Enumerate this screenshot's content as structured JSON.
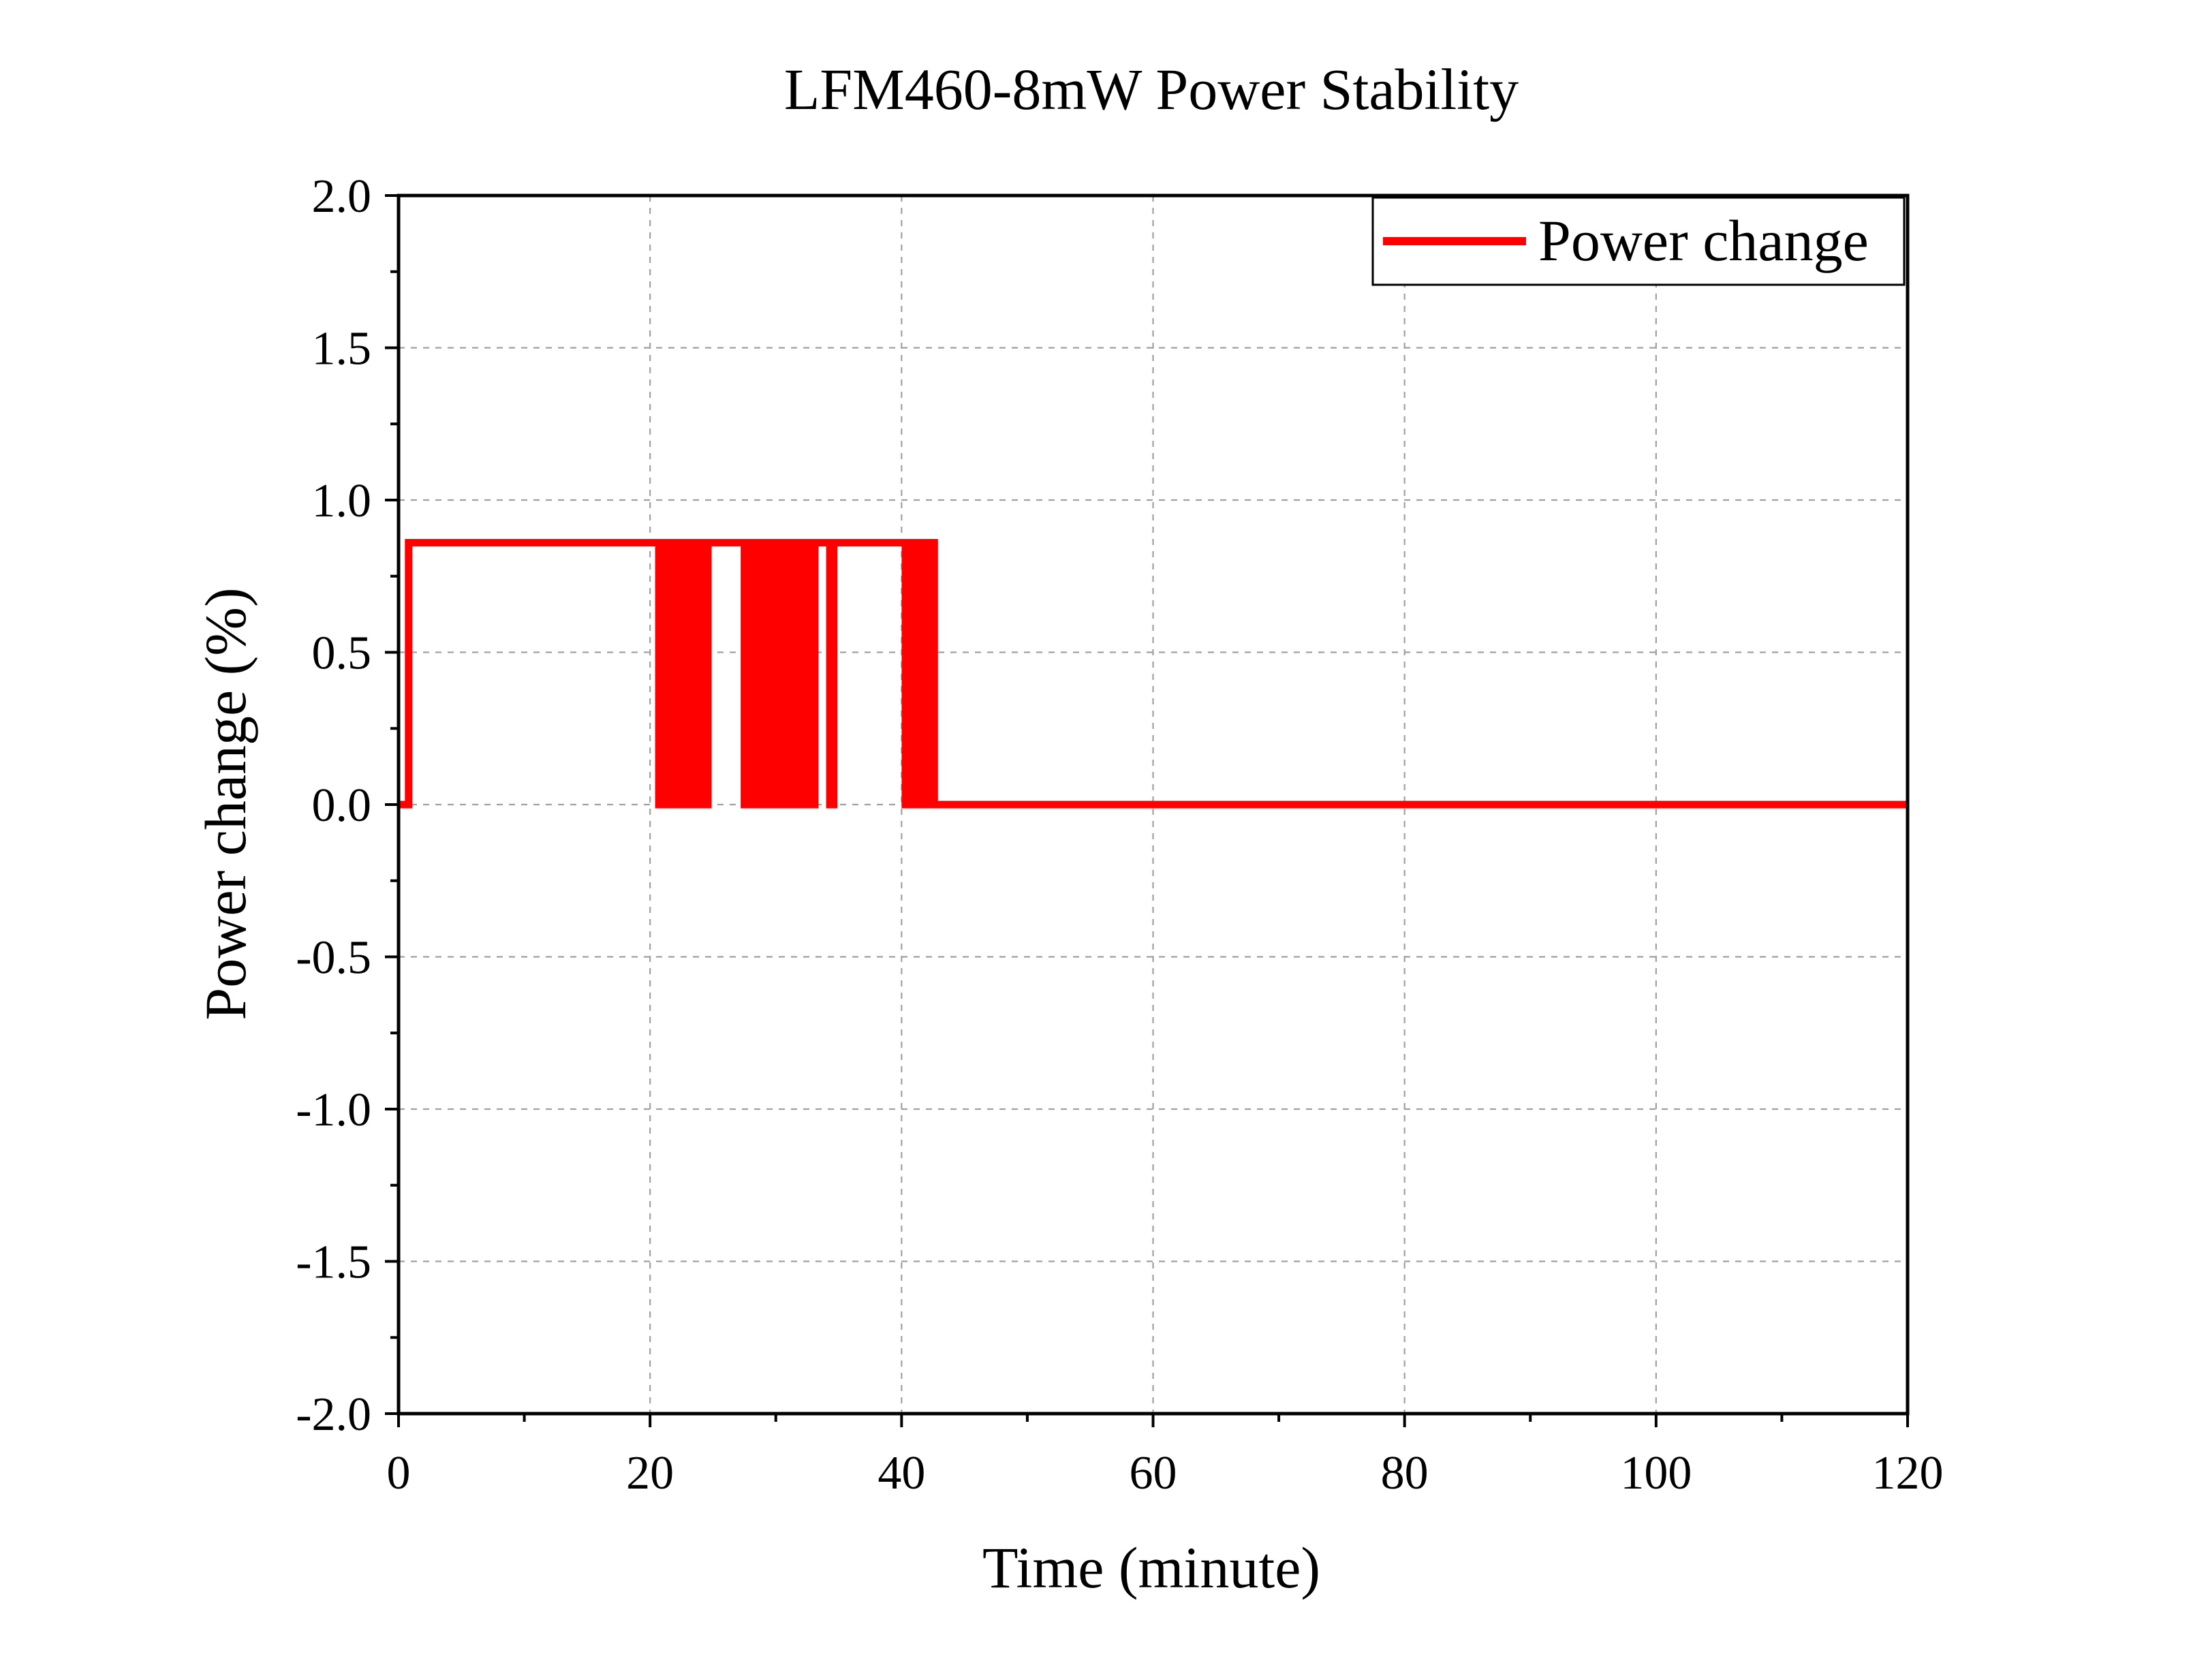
{
  "chart_data": {
    "type": "line",
    "title": "LFM460-8mW Power Stability",
    "xlabel": "Time (minute)",
    "ylabel": "Power change (%)",
    "xlim": [
      0,
      120
    ],
    "ylim": [
      -2.0,
      2.0
    ],
    "x_ticks": [
      0,
      20,
      40,
      60,
      80,
      100,
      120
    ],
    "x_tick_labels": [
      "0",
      "20",
      "40",
      "60",
      "80",
      "100",
      "120"
    ],
    "y_ticks": [
      -2.0,
      -1.5,
      -1.0,
      -0.5,
      0.0,
      0.5,
      1.0,
      1.5,
      2.0
    ],
    "y_tick_labels": [
      "-2.0",
      "-1.5",
      "-1.0",
      "-0.5",
      "0.0",
      "0.5",
      "1.0",
      "1.5",
      "2.0"
    ],
    "grid": true,
    "legend_position": "top-right",
    "series": [
      {
        "name": "Power change",
        "color": "#ff0000",
        "values_note_unit": "%",
        "points": [
          [
            0,
            0.0
          ],
          [
            0.8,
            0.0
          ],
          [
            0.8,
            0.86
          ],
          [
            20.7,
            0.86
          ],
          [
            20.7,
            0.0
          ],
          [
            21.0,
            0.0
          ],
          [
            21.0,
            0.86
          ],
          [
            21.3,
            0.86
          ],
          [
            21.3,
            0.0
          ],
          [
            21.6,
            0.0
          ],
          [
            21.6,
            0.86
          ],
          [
            21.9,
            0.86
          ],
          [
            21.9,
            0.0
          ],
          [
            22.2,
            0.0
          ],
          [
            22.2,
            0.86
          ],
          [
            22.5,
            0.86
          ],
          [
            22.5,
            0.0
          ],
          [
            22.8,
            0.0
          ],
          [
            22.8,
            0.86
          ],
          [
            23.1,
            0.86
          ],
          [
            23.1,
            0.0
          ],
          [
            23.4,
            0.0
          ],
          [
            23.4,
            0.86
          ],
          [
            23.7,
            0.86
          ],
          [
            23.7,
            0.0
          ],
          [
            24.0,
            0.0
          ],
          [
            24.0,
            0.86
          ],
          [
            24.3,
            0.86
          ],
          [
            24.3,
            0.0
          ],
          [
            24.6,
            0.0
          ],
          [
            24.6,
            0.86
          ],
          [
            27.5,
            0.86
          ],
          [
            27.5,
            0.0
          ],
          [
            27.8,
            0.0
          ],
          [
            27.8,
            0.86
          ],
          [
            28.1,
            0.86
          ],
          [
            28.1,
            0.0
          ],
          [
            28.4,
            0.0
          ],
          [
            28.4,
            0.86
          ],
          [
            28.7,
            0.86
          ],
          [
            28.7,
            0.0
          ],
          [
            29.0,
            0.0
          ],
          [
            29.0,
            0.86
          ],
          [
            29.3,
            0.86
          ],
          [
            29.3,
            0.0
          ],
          [
            29.6,
            0.0
          ],
          [
            29.6,
            0.86
          ],
          [
            29.9,
            0.86
          ],
          [
            29.9,
            0.0
          ],
          [
            30.2,
            0.0
          ],
          [
            30.2,
            0.86
          ],
          [
            30.5,
            0.86
          ],
          [
            30.5,
            0.0
          ],
          [
            30.8,
            0.0
          ],
          [
            30.8,
            0.86
          ],
          [
            31.1,
            0.86
          ],
          [
            31.1,
            0.0
          ],
          [
            31.4,
            0.0
          ],
          [
            31.4,
            0.86
          ],
          [
            31.7,
            0.86
          ],
          [
            31.7,
            0.0
          ],
          [
            32.0,
            0.0
          ],
          [
            32.0,
            0.86
          ],
          [
            32.3,
            0.86
          ],
          [
            32.3,
            0.0
          ],
          [
            32.6,
            0.0
          ],
          [
            32.6,
            0.86
          ],
          [
            32.9,
            0.86
          ],
          [
            32.9,
            0.0
          ],
          [
            33.1,
            0.0
          ],
          [
            33.1,
            0.86
          ],
          [
            34.3,
            0.86
          ],
          [
            34.3,
            0.0
          ],
          [
            34.6,
            0.0
          ],
          [
            34.6,
            0.86
          ],
          [
            40.3,
            0.86
          ],
          [
            40.3,
            0.0
          ],
          [
            40.6,
            0.0
          ],
          [
            40.6,
            0.86
          ],
          [
            40.9,
            0.86
          ],
          [
            40.9,
            0.0
          ],
          [
            41.2,
            0.0
          ],
          [
            41.2,
            0.86
          ],
          [
            41.5,
            0.86
          ],
          [
            41.5,
            0.0
          ],
          [
            41.8,
            0.0
          ],
          [
            41.8,
            0.86
          ],
          [
            42.1,
            0.86
          ],
          [
            42.1,
            0.0
          ],
          [
            42.4,
            0.0
          ],
          [
            42.4,
            0.86
          ],
          [
            42.6,
            0.86
          ],
          [
            42.6,
            0.0
          ],
          [
            120,
            0.0
          ]
        ]
      }
    ]
  }
}
